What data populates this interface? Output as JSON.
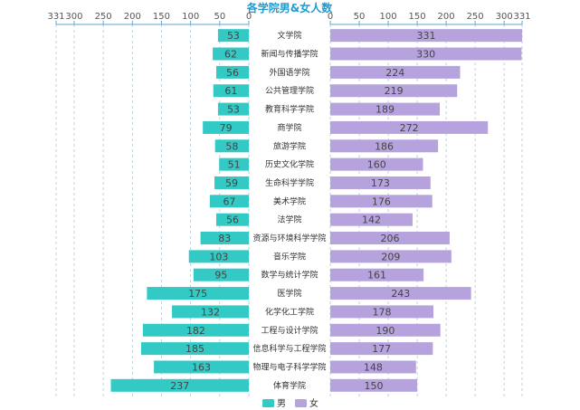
{
  "chart_data": {
    "type": "bar",
    "title": "各学院男&女人数",
    "categories": [
      "文学院",
      "新闻与传播学院",
      "外国语学院",
      "公共管理学院",
      "教育科学学院",
      "商学院",
      "旅游学院",
      "历史文化学院",
      "生命科学学院",
      "美术学院",
      "法学院",
      "资源与环境科学学院",
      "音乐学院",
      "数学与统计学院",
      "医学院",
      "化学化工学院",
      "工程与设计学院",
      "信息科学与工程学院",
      "物理与电子科学学院",
      "体育学院"
    ],
    "series": [
      {
        "name": "男",
        "color": "#33c9c5",
        "values": [
          53,
          62,
          56,
          61,
          53,
          79,
          58,
          51,
          59,
          67,
          56,
          83,
          103,
          95,
          175,
          132,
          182,
          185,
          163,
          237
        ]
      },
      {
        "name": "女",
        "color": "#b6a3de",
        "values": [
          331,
          330,
          224,
          219,
          189,
          272,
          186,
          160,
          173,
          176,
          142,
          206,
          209,
          161,
          243,
          178,
          190,
          177,
          148,
          150
        ]
      }
    ],
    "left_axis": {
      "range": [
        331,
        0
      ],
      "ticks": [
        "331",
        "300",
        "250",
        "200",
        "150",
        "100",
        "50",
        "0"
      ]
    },
    "right_axis": {
      "range": [
        0,
        331
      ],
      "ticks": [
        "0",
        "50",
        "100",
        "150",
        "200",
        "250",
        "300",
        "331"
      ]
    },
    "title_color": "#1f9bd1",
    "axis_color": "#5aa7d6",
    "grid": "dashed-vertical",
    "legend": "bottom-center"
  }
}
